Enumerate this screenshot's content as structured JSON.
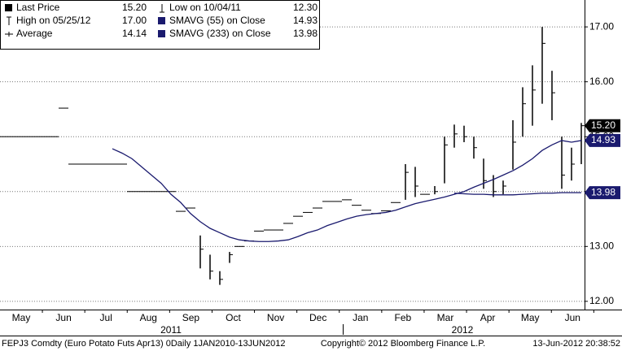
{
  "chart_data": {
    "type": "ohlc",
    "categories": [
      "May",
      "Jun",
      "Jul",
      "Aug",
      "Sep",
      "Oct",
      "Nov",
      "Dec",
      "Jan",
      "Feb",
      "Mar",
      "Apr",
      "May",
      "Jun"
    ],
    "year_labels": [
      "2011",
      "2012"
    ],
    "ylim": [
      11.85,
      17.49
    ],
    "yticks": [
      {
        "value": 12,
        "label": "12.00"
      },
      {
        "value": 13,
        "label": "13.00"
      },
      {
        "value": 14,
        "label": "14.00"
      },
      {
        "value": 15,
        "label": "15.00"
      },
      {
        "value": 16,
        "label": "16.00"
      },
      {
        "value": 17,
        "label": "17.00"
      }
    ],
    "grid": true,
    "legend": [
      {
        "label": "Last Price",
        "value": "15.20"
      },
      {
        "label": "High on 05/25/12",
        "value": "17.00"
      },
      {
        "label": "Low on 10/04/11",
        "value": "12.30"
      },
      {
        "label": "Average",
        "value": "14.14"
      },
      {
        "label": "SMAVG (55) on Close",
        "value": "14.93"
      },
      {
        "label": "SMAVG (233) on Close",
        "value": "13.98"
      }
    ],
    "price": {
      "name": "Last Price",
      "color": "#000000",
      "high": [
        15,
        15,
        15,
        15,
        15,
        15,
        15.52,
        14.5,
        14.5,
        14.5,
        14.5,
        14.5,
        14.5,
        14,
        14,
        14,
        14,
        14,
        13.64,
        13.7,
        13.2,
        12.85,
        12.55,
        12.9,
        13,
        13.1,
        13.28,
        13.3,
        13.3,
        13.42,
        13.55,
        13.62,
        13.7,
        13.82,
        13.82,
        13.85,
        13.75,
        13.66,
        13.6,
        13.65,
        13.8,
        14.5,
        14.45,
        13.95,
        14.1,
        15,
        15.22,
        15.2,
        15,
        14.6,
        14.3,
        14.2,
        15.3,
        15.9,
        16.3,
        17,
        16.2,
        15,
        14.8,
        15.25
      ],
      "low": [
        15,
        15,
        15,
        15,
        15,
        15,
        15.52,
        14.5,
        14.5,
        14.5,
        14.5,
        14.5,
        14.5,
        14,
        14,
        14,
        14,
        14,
        13.64,
        13.7,
        12.6,
        12.4,
        12.3,
        12.7,
        13,
        13.1,
        13.28,
        13.3,
        13.3,
        13.42,
        13.55,
        13.62,
        13.7,
        13.82,
        13.82,
        13.85,
        13.75,
        13.66,
        13.6,
        13.65,
        13.8,
        13.85,
        13.9,
        13.95,
        13.95,
        14.15,
        14.8,
        14.9,
        14.6,
        14.05,
        13.9,
        13.95,
        14.4,
        15,
        15.2,
        15.6,
        15.3,
        14.05,
        14.2,
        14.5
      ],
      "close": [
        15,
        15,
        15,
        15,
        15,
        15,
        15.52,
        14.5,
        14.5,
        14.5,
        14.5,
        14.5,
        14.5,
        14,
        14,
        14,
        14,
        14,
        13.64,
        13.7,
        12.95,
        12.55,
        12.4,
        12.85,
        13,
        13.1,
        13.28,
        13.3,
        13.3,
        13.42,
        13.55,
        13.62,
        13.7,
        13.82,
        13.82,
        13.85,
        13.75,
        13.66,
        13.6,
        13.65,
        13.8,
        14.35,
        14.1,
        13.95,
        14,
        14.85,
        15.05,
        15,
        14.8,
        14.2,
        14,
        14.1,
        14.9,
        15.6,
        15.85,
        16.7,
        15.8,
        14.3,
        14.5,
        15.2
      ]
    },
    "ma": [
      {
        "name": "SMAVG (55) on Close",
        "color": "#1a1a6e",
        "values": [
          null,
          null,
          null,
          null,
          null,
          null,
          null,
          null,
          null,
          null,
          null,
          14.78,
          14.7,
          14.6,
          14.45,
          14.3,
          14.15,
          13.95,
          13.8,
          13.6,
          13.45,
          13.33,
          13.25,
          13.17,
          13.12,
          13.1,
          13.09,
          13.09,
          13.1,
          13.12,
          13.18,
          13.25,
          13.3,
          13.38,
          13.44,
          13.5,
          13.55,
          13.58,
          13.6,
          13.62,
          13.66,
          13.72,
          13.78,
          13.82,
          13.86,
          13.9,
          13.95,
          14,
          14.08,
          14.15,
          14.22,
          14.3,
          14.38,
          14.48,
          14.6,
          14.75,
          14.85,
          14.93,
          14.9,
          14.93
        ]
      },
      {
        "name": "SMAVG (233) on Close",
        "color": "#1a1a6e",
        "values": [
          null,
          null,
          null,
          null,
          null,
          null,
          null,
          null,
          null,
          null,
          null,
          null,
          null,
          null,
          null,
          null,
          null,
          null,
          null,
          null,
          null,
          null,
          null,
          null,
          null,
          null,
          null,
          null,
          null,
          null,
          null,
          null,
          null,
          null,
          null,
          null,
          null,
          null,
          null,
          null,
          null,
          null,
          null,
          null,
          null,
          null,
          13.97,
          13.96,
          13.95,
          13.95,
          13.94,
          13.94,
          13.94,
          13.95,
          13.96,
          13.97,
          13.97,
          13.98,
          13.98,
          13.98
        ]
      }
    ],
    "footer": {
      "left": "FEPJ3 Comdty (Euro Potato Futs  Apr13) 0Daily 1JAN2010-13JUN2012",
      "center": "Copyright© 2012 Bloomberg Finance L.P.",
      "right": "13-Jun-2012 20:38:52"
    }
  }
}
